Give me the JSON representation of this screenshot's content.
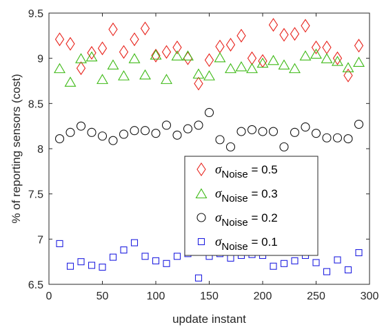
{
  "chart_data": {
    "type": "scatter",
    "title": "",
    "xlabel": "update instant",
    "ylabel": "% of reporting sensors (cost)",
    "xlim": [
      0,
      300
    ],
    "ylim": [
      6.5,
      9.5
    ],
    "xticks": [
      0,
      50,
      100,
      150,
      200,
      250,
      300
    ],
    "xtick_labels": [
      "0",
      "50",
      "100",
      "150",
      "200",
      "250",
      "300"
    ],
    "yticks": [
      6.5,
      7,
      7.5,
      8,
      8.5,
      9,
      9.5
    ],
    "ytick_labels": [
      "6.5",
      "7",
      "7.5",
      "8",
      "8.5",
      "9",
      "9.5"
    ],
    "grid": false,
    "legend_position": "center-right",
    "x": [
      10,
      20,
      30,
      40,
      50,
      60,
      70,
      80,
      90,
      100,
      110,
      120,
      130,
      140,
      150,
      160,
      170,
      180,
      190,
      200,
      210,
      220,
      230,
      240,
      250,
      260,
      270,
      280,
      290
    ],
    "series": [
      {
        "legend_symbol": "σ",
        "legend_subscript": "Noise",
        "legend_value": " = 0.5",
        "marker": "diamond",
        "color": "#e8231c",
        "values": [
          9.21,
          9.16,
          8.89,
          9.06,
          9.11,
          9.32,
          9.07,
          9.21,
          9.33,
          9.03,
          9.07,
          9.12,
          9.0,
          8.72,
          8.98,
          9.13,
          9.15,
          9.25,
          9.0,
          8.97,
          9.37,
          9.26,
          9.27,
          9.36,
          9.12,
          9.12,
          9.0,
          8.81,
          9.14
        ]
      },
      {
        "legend_symbol": "σ",
        "legend_subscript": "Noise",
        "legend_value": " = 0.3",
        "marker": "triangle",
        "color": "#3cb914",
        "values": [
          8.89,
          8.74,
          9.0,
          9.02,
          8.77,
          8.93,
          8.81,
          9.0,
          8.82,
          9.04,
          8.77,
          9.03,
          9.03,
          8.83,
          8.81,
          9.01,
          8.89,
          8.91,
          8.89,
          8.95,
          8.98,
          8.93,
          8.89,
          9.03,
          9.05,
          9.0,
          8.97,
          8.9,
          8.96
        ]
      },
      {
        "legend_symbol": "σ",
        "legend_subscript": "Noise",
        "legend_value": " = 0.2",
        "marker": "circle",
        "color": "#111111",
        "values": [
          8.11,
          8.18,
          8.25,
          8.18,
          8.14,
          8.09,
          8.16,
          8.2,
          8.2,
          8.17,
          8.26,
          8.15,
          8.22,
          8.26,
          8.4,
          8.1,
          8.02,
          8.19,
          8.21,
          8.19,
          8.19,
          8.02,
          8.18,
          8.24,
          8.17,
          8.12,
          8.12,
          8.11,
          8.27
        ]
      },
      {
        "legend_symbol": "σ",
        "legend_subscript": "Noise",
        "legend_value": " = 0.1",
        "marker": "square",
        "color": "#1f1fe0",
        "values": [
          6.95,
          6.7,
          6.75,
          6.71,
          6.69,
          6.8,
          6.88,
          6.96,
          6.81,
          6.76,
          6.73,
          6.81,
          6.84,
          6.57,
          6.81,
          6.84,
          6.79,
          6.82,
          6.83,
          6.82,
          6.7,
          6.73,
          6.76,
          6.82,
          6.74,
          6.64,
          6.77,
          6.66,
          6.85
        ]
      }
    ]
  }
}
